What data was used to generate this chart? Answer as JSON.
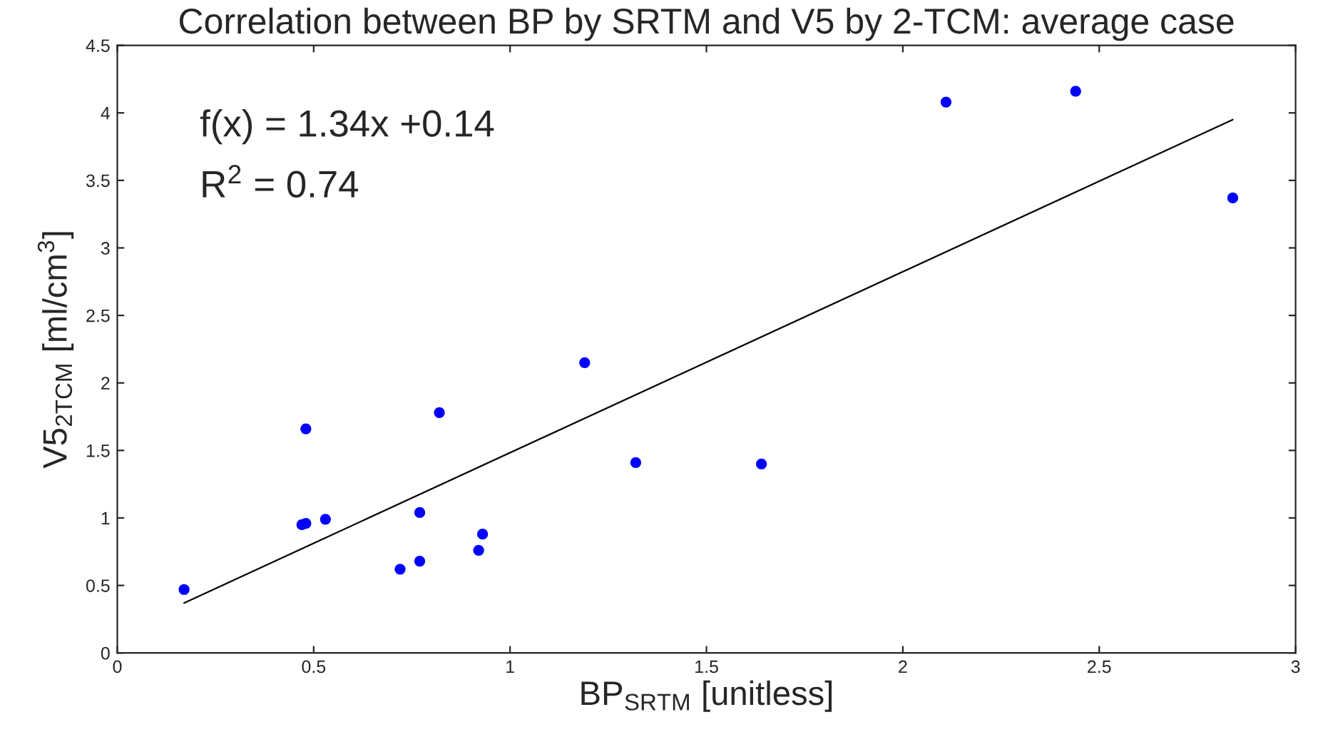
{
  "chart_data": {
    "type": "scatter",
    "title": "Correlation between BP by SRTM and V5 by 2-TCM: average case",
    "xlabel": "BP$_{SRTM}$ [unitless]",
    "ylabel": "V5$_{2TCM}$ [ml/cm$^{3}$]",
    "series": [
      {
        "color": "#0000ff",
        "marker": "circle",
        "x": [
          0.17,
          0.47,
          0.48,
          0.48,
          0.53,
          0.72,
          0.77,
          0.77,
          0.82,
          0.92,
          0.93,
          1.19,
          1.32,
          1.64,
          2.11,
          2.44,
          2.84
        ],
        "values": [
          0.47,
          0.95,
          0.96,
          1.66,
          0.99,
          0.62,
          0.68,
          1.04,
          1.78,
          0.76,
          0.88,
          2.15,
          1.41,
          1.4,
          4.08,
          4.16,
          3.37
        ]
      },
      {
        "type": "line",
        "color": "#000000",
        "marker": "none",
        "x": [
          0.17,
          2.84
        ],
        "values": [
          0.37,
          3.95
        ]
      }
    ],
    "annotations": [
      "f(x) = 1.34x +0.14",
      "R$^{2}$ = 0.74"
    ],
    "xlim": [
      0,
      3
    ],
    "xticks": [
      0,
      0.5,
      1,
      1.5,
      2,
      2.5,
      3
    ],
    "ylim": [
      0,
      4.5
    ],
    "yticks": [
      0,
      0.5,
      1,
      1.5,
      2,
      2.5,
      3,
      3.5,
      4,
      4.5
    ],
    "grid": false,
    "legend": false
  }
}
